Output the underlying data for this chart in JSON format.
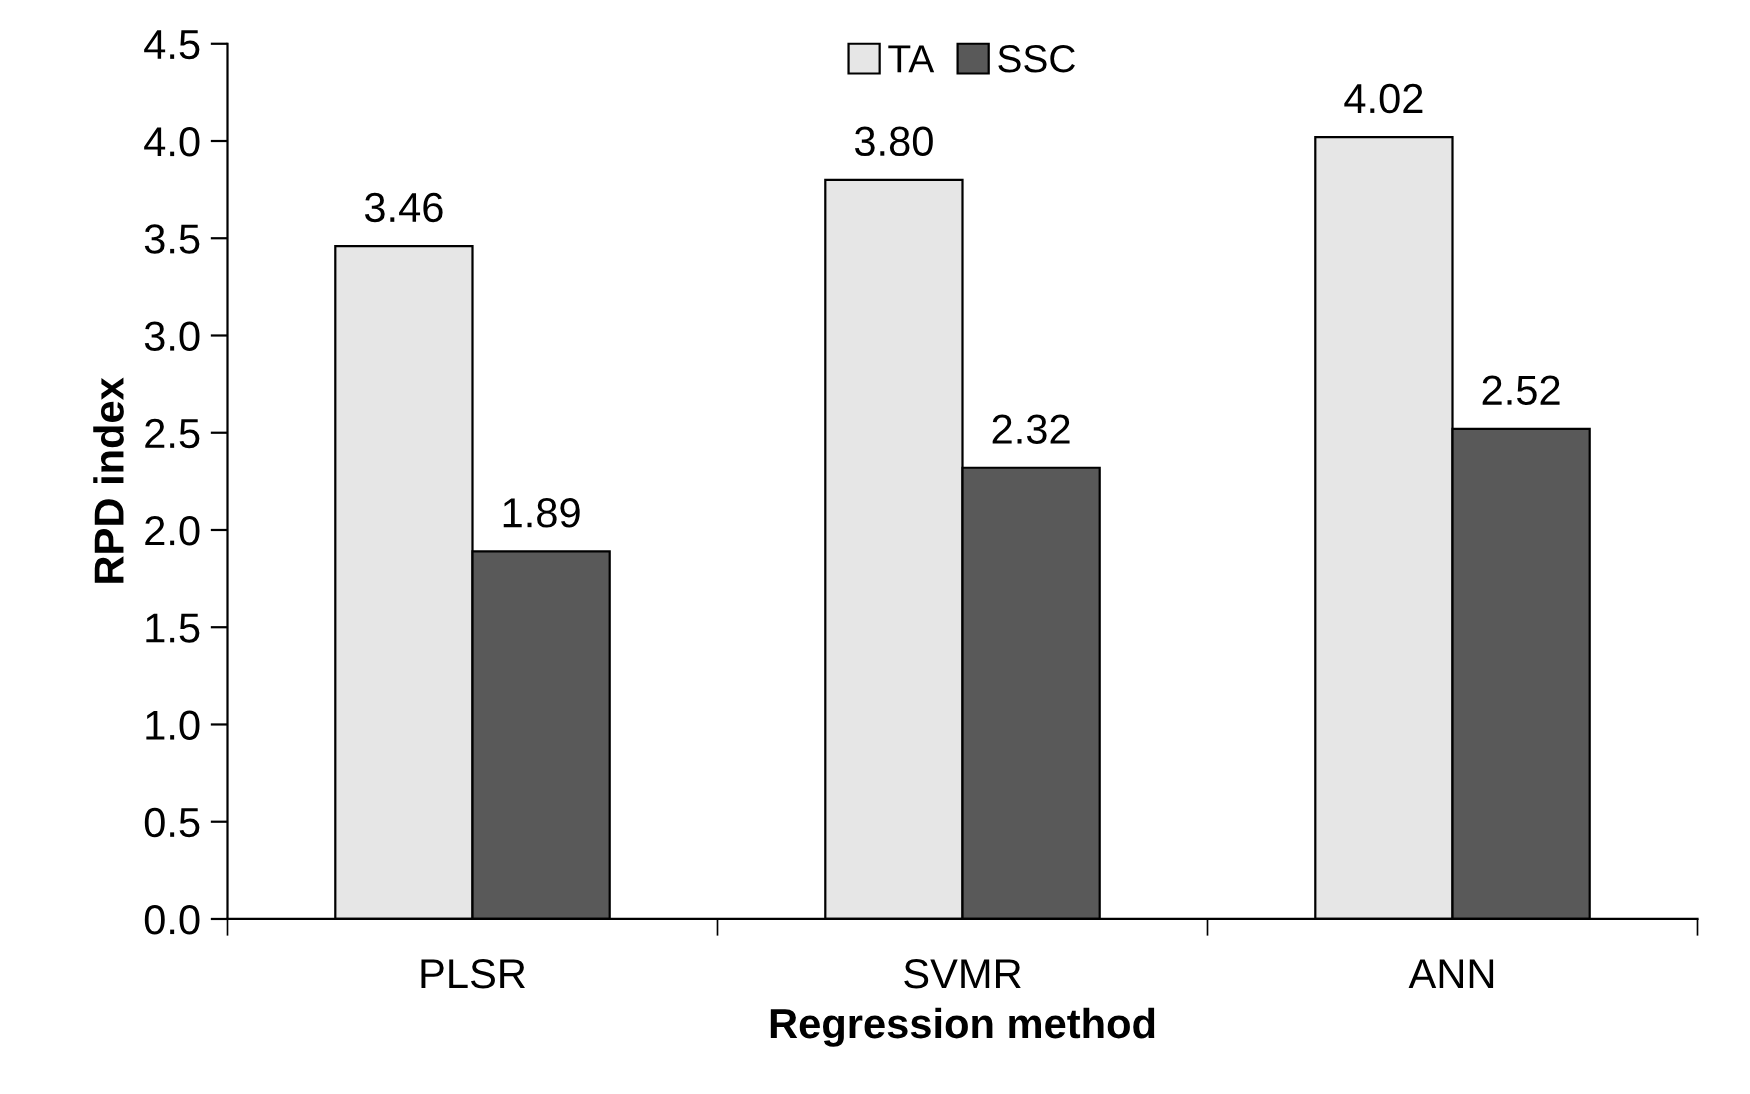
{
  "chart_data": {
    "type": "bar",
    "xlabel": "Regression method",
    "ylabel": "RPD index",
    "categories": [
      "PLSR",
      "SVMR",
      "ANN"
    ],
    "series": [
      {
        "name": "TA",
        "color": "#e6e6e6",
        "values": [
          3.46,
          3.8,
          4.02
        ],
        "value_labels": [
          "3.46",
          "3.80",
          "4.02"
        ]
      },
      {
        "name": "SSC",
        "color": "#595959",
        "values": [
          1.89,
          2.32,
          2.52
        ],
        "value_labels": [
          "1.89",
          "2.32",
          "2.52"
        ]
      }
    ],
    "ylim": [
      0,
      4.5
    ],
    "yticks": [
      {
        "value": 0,
        "label": "0.0"
      },
      {
        "value": 0.5,
        "label": "0.5"
      },
      {
        "value": 1,
        "label": "1.0"
      },
      {
        "value": 1.5,
        "label": "1.5"
      },
      {
        "value": 2,
        "label": "2.0"
      },
      {
        "value": 2.5,
        "label": "2.5"
      },
      {
        "value": 3,
        "label": "3.0"
      },
      {
        "value": 3.5,
        "label": "3.5"
      },
      {
        "value": 4,
        "label": "4.0"
      },
      {
        "value": 4.5,
        "label": "4.5"
      }
    ],
    "grid": false,
    "legend": "top"
  }
}
